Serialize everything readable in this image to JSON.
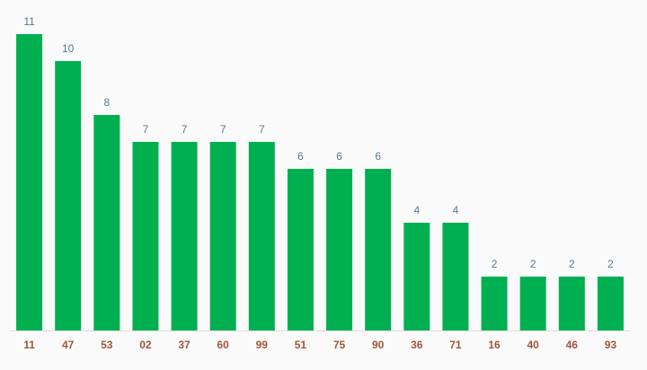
{
  "chart_data": {
    "type": "bar",
    "categories": [
      "11",
      "47",
      "53",
      "02",
      "37",
      "60",
      "99",
      "51",
      "75",
      "90",
      "36",
      "71",
      "16",
      "40",
      "46",
      "93"
    ],
    "values": [
      11,
      10,
      8,
      7,
      7,
      7,
      7,
      6,
      6,
      6,
      4,
      4,
      2,
      2,
      2,
      2
    ],
    "color": "#00b050"
  }
}
